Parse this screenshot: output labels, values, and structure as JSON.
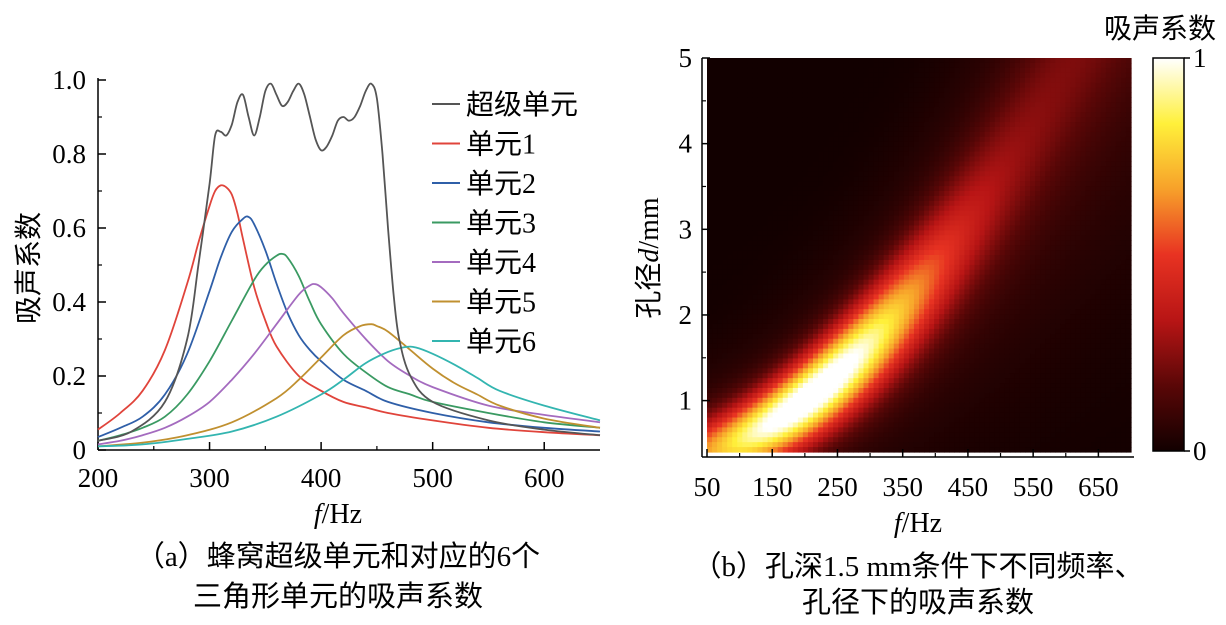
{
  "chart_data": [
    {
      "type": "line",
      "xlabel": "f/Hz",
      "xlabel_italic": "f",
      "xlabel_unit": "/Hz",
      "ylabel": "吸声系数",
      "xlim": [
        200,
        650
      ],
      "ylim": [
        0,
        1.0
      ],
      "xticks": [
        200,
        300,
        400,
        500,
        600
      ],
      "xtick_labels": [
        "200",
        "300",
        "400",
        "500",
        "600"
      ],
      "yticks": [
        0,
        0.2,
        0.4,
        0.6,
        0.8,
        1.0
      ],
      "ytick_labels": [
        "0",
        "0.2",
        "0.4",
        "0.6",
        "0.8",
        "1.0"
      ],
      "caption": [
        "（a）蜂窝超级单元和对应的6个",
        "三角形单元的吸声系数"
      ],
      "legend_position": "top-right",
      "series": [
        {
          "name": "超级单元",
          "color": "#555555",
          "x": [
            200,
            230,
            260,
            280,
            290,
            300,
            305,
            310,
            315,
            320,
            325,
            330,
            335,
            340,
            345,
            350,
            355,
            360,
            365,
            370,
            375,
            380,
            385,
            390,
            395,
            400,
            405,
            410,
            415,
            420,
            425,
            430,
            435,
            440,
            445,
            450,
            455,
            460,
            465,
            470,
            480,
            500,
            550,
            600,
            650
          ],
          "y": [
            0.025,
            0.05,
            0.13,
            0.3,
            0.5,
            0.72,
            0.85,
            0.86,
            0.85,
            0.88,
            0.94,
            0.96,
            0.9,
            0.85,
            0.9,
            0.97,
            0.99,
            0.96,
            0.93,
            0.94,
            0.97,
            0.99,
            0.96,
            0.9,
            0.84,
            0.81,
            0.82,
            0.85,
            0.89,
            0.9,
            0.89,
            0.9,
            0.93,
            0.97,
            0.99,
            0.95,
            0.8,
            0.6,
            0.42,
            0.3,
            0.2,
            0.13,
            0.08,
            0.055,
            0.04
          ]
        },
        {
          "name": "单元1",
          "color": "#e0443b",
          "x": [
            200,
            220,
            240,
            260,
            280,
            290,
            300,
            305,
            310,
            315,
            320,
            325,
            330,
            340,
            350,
            360,
            380,
            400,
            420,
            440,
            460,
            500,
            550,
            600,
            650
          ],
          "y": [
            0.055,
            0.1,
            0.16,
            0.27,
            0.45,
            0.56,
            0.66,
            0.7,
            0.715,
            0.71,
            0.69,
            0.64,
            0.57,
            0.44,
            0.35,
            0.28,
            0.2,
            0.16,
            0.13,
            0.115,
            0.1,
            0.08,
            0.06,
            0.048,
            0.04
          ]
        },
        {
          "name": "单元2",
          "color": "#2f5fa8",
          "x": [
            200,
            220,
            240,
            260,
            280,
            300,
            310,
            320,
            330,
            335,
            340,
            350,
            360,
            370,
            380,
            390,
            400,
            420,
            440,
            460,
            500,
            550,
            600,
            650
          ],
          "y": [
            0.035,
            0.06,
            0.09,
            0.15,
            0.26,
            0.43,
            0.52,
            0.59,
            0.625,
            0.63,
            0.61,
            0.54,
            0.45,
            0.37,
            0.31,
            0.27,
            0.24,
            0.19,
            0.16,
            0.13,
            0.1,
            0.075,
            0.06,
            0.05
          ]
        },
        {
          "name": "单元3",
          "color": "#3a9a62",
          "x": [
            200,
            220,
            240,
            260,
            280,
            300,
            320,
            340,
            350,
            360,
            365,
            370,
            380,
            390,
            400,
            420,
            440,
            460,
            480,
            500,
            550,
            600,
            650
          ],
          "y": [
            0.025,
            0.04,
            0.06,
            0.09,
            0.15,
            0.24,
            0.35,
            0.46,
            0.5,
            0.525,
            0.53,
            0.52,
            0.47,
            0.4,
            0.34,
            0.26,
            0.21,
            0.17,
            0.15,
            0.13,
            0.1,
            0.075,
            0.06
          ]
        },
        {
          "name": "单元4",
          "color": "#a46bbf",
          "x": [
            200,
            220,
            240,
            260,
            280,
            300,
            320,
            340,
            360,
            380,
            390,
            395,
            400,
            410,
            420,
            440,
            460,
            480,
            500,
            550,
            600,
            650
          ],
          "y": [
            0.015,
            0.025,
            0.04,
            0.06,
            0.09,
            0.13,
            0.19,
            0.26,
            0.34,
            0.42,
            0.445,
            0.448,
            0.44,
            0.41,
            0.37,
            0.3,
            0.24,
            0.2,
            0.17,
            0.12,
            0.095,
            0.075
          ]
        },
        {
          "name": "单元5",
          "color": "#c09030",
          "x": [
            200,
            240,
            280,
            320,
            360,
            380,
            400,
            420,
            435,
            445,
            450,
            460,
            480,
            500,
            520,
            540,
            560,
            600,
            650
          ],
          "y": [
            0.01,
            0.02,
            0.04,
            0.075,
            0.14,
            0.19,
            0.25,
            0.31,
            0.335,
            0.34,
            0.335,
            0.32,
            0.27,
            0.22,
            0.18,
            0.15,
            0.12,
            0.085,
            0.06
          ]
        },
        {
          "name": "单元6",
          "color": "#33b5b0",
          "x": [
            200,
            240,
            280,
            320,
            360,
            400,
            420,
            440,
            460,
            475,
            485,
            500,
            520,
            540,
            560,
            600,
            650
          ],
          "y": [
            0.01,
            0.015,
            0.03,
            0.05,
            0.09,
            0.15,
            0.19,
            0.235,
            0.265,
            0.278,
            0.277,
            0.26,
            0.23,
            0.195,
            0.16,
            0.12,
            0.08
          ]
        }
      ]
    },
    {
      "type": "heatmap",
      "xlabel": "f/Hz",
      "xlabel_italic": "f",
      "xlabel_unit": "/Hz",
      "ylabel": "孔径d/mm",
      "ylabel_parts": [
        "孔径",
        "d",
        "/mm"
      ],
      "xlim": [
        50,
        700
      ],
      "ylim": [
        0.4,
        5
      ],
      "xticks": [
        50,
        150,
        250,
        350,
        450,
        550,
        650
      ],
      "xtick_labels": [
        "50",
        "150",
        "250",
        "350",
        "450",
        "550",
        "650"
      ],
      "yticks": [
        1,
        2,
        3,
        4,
        5
      ],
      "ytick_labels": [
        "1",
        "2",
        "3",
        "4",
        "5"
      ],
      "colorbar": {
        "title": "吸声系数",
        "min_label": "0",
        "max_label": "1",
        "range": [
          0,
          1
        ],
        "colors": [
          "#120000",
          "#5a0707",
          "#b81515",
          "#e83322",
          "#f7a12a",
          "#fff03a",
          "#ffffff"
        ]
      },
      "ridge": {
        "x": [
          70,
          250,
          450
        ],
        "d": [
          0.45,
          1.3,
          3.0
        ]
      },
      "peak": {
        "x": 210,
        "d": 1.2,
        "value": 1.0
      },
      "caption": [
        "（b）孔深1.5 mm条件下不同频率、",
        "孔径下的吸声系数"
      ]
    }
  ]
}
